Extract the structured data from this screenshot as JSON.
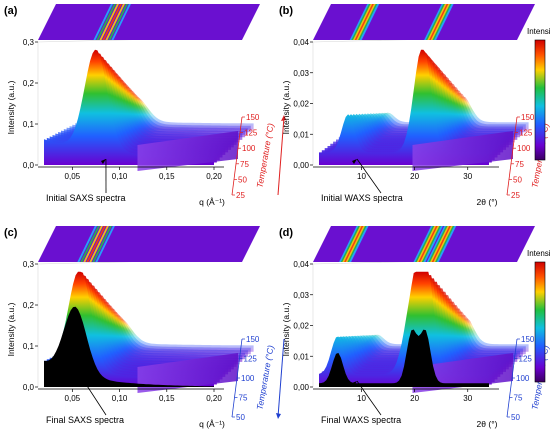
{
  "colors": {
    "heat_low": "#5a00c8",
    "heat_mid_low": "#1fb0ff",
    "heat_mid": "#20c040",
    "heat_mid_high": "#ffd000",
    "heat_high": "#e00000",
    "temp_heating_axis": "#e02020",
    "temp_cooling_axis": "#2040d0",
    "final_profile": "#000000"
  },
  "chart_data": [
    {
      "panel_label": "(a)",
      "type": "surface3d",
      "xlabel": "q (Å⁻¹)",
      "x_ticks": [
        "0,05",
        "0,10",
        "0,15",
        "0,20"
      ],
      "xlim": [
        0.02,
        0.2
      ],
      "ylabel": "Intensity (a.u.)",
      "y_ticks": [
        "0,0",
        "0,1",
        "0,2",
        "0,3"
      ],
      "ylim": [
        0,
        0.3
      ],
      "zlabel": "Temperature (°C)",
      "z_ticks": [
        "25",
        "50",
        "75",
        "100",
        "125",
        "150"
      ],
      "zlim": [
        25,
        150
      ],
      "z_direction": "increasing",
      "peak_x": 0.075,
      "annotation": "Initial SAXS spectra",
      "colorbar": false
    },
    {
      "panel_label": "(b)",
      "type": "surface3d",
      "xlabel": "2θ (°)",
      "x_ticks": [
        "10",
        "20",
        "30"
      ],
      "xlim": [
        2,
        34
      ],
      "ylabel": "Intensity (a.u.)",
      "y_ticks": [
        "0,00",
        "0,01",
        "0,02",
        "0,03",
        "0,04"
      ],
      "ylim": [
        0,
        0.04
      ],
      "zlabel": "Temperature (°C)",
      "z_ticks": [
        "25",
        "50",
        "75",
        "100",
        "125",
        "150"
      ],
      "zlim": [
        25,
        150
      ],
      "z_direction": "increasing",
      "peaks_x": [
        7.5,
        21.5
      ],
      "annotation": "Initial WAXS spectra",
      "colorbar": true,
      "colorbar_title": "Intensity"
    },
    {
      "panel_label": "(c)",
      "type": "surface3d",
      "xlabel": "q (Å⁻¹)",
      "x_ticks": [
        "0,05",
        "0,10",
        "0,15",
        "0,20"
      ],
      "xlim": [
        0.02,
        0.2
      ],
      "ylabel": "Intensity (a.u.)",
      "y_ticks": [
        "0,0",
        "0,1",
        "0,2",
        "0,3"
      ],
      "ylim": [
        0,
        0.3
      ],
      "zlabel": "Temperature (°C)",
      "z_ticks": [
        "50",
        "75",
        "100",
        "125",
        "150"
      ],
      "zlim": [
        50,
        150
      ],
      "z_direction": "decreasing",
      "peak_x": 0.058,
      "annotation": "Final SAXS spectra",
      "colorbar": false
    },
    {
      "panel_label": "(d)",
      "type": "surface3d",
      "xlabel": "2θ (°)",
      "x_ticks": [
        "10",
        "20",
        "30"
      ],
      "xlim": [
        2,
        34
      ],
      "ylabel": "Intensity (a.u.)",
      "y_ticks": [
        "0,00",
        "0,01",
        "0,02",
        "0,03",
        "0,04"
      ],
      "ylim": [
        0,
        0.04
      ],
      "zlabel": "Temperature (°C)",
      "z_ticks": [
        "50",
        "75",
        "100",
        "125",
        "150"
      ],
      "zlim": [
        50,
        150
      ],
      "z_direction": "decreasing",
      "peaks_x": [
        5.5,
        19.5,
        22.0
      ],
      "annotation": "Final WAXS spectra",
      "colorbar": true,
      "colorbar_title": "Intensity"
    }
  ]
}
